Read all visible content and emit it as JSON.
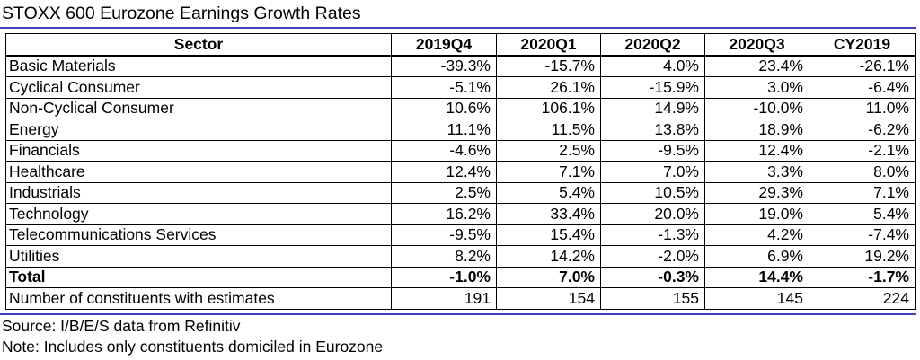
{
  "title": "STOXX 600 Eurozone Earnings Growth Rates",
  "table": {
    "headers": [
      "Sector",
      "2019Q4",
      "2020Q1",
      "2020Q2",
      "2020Q3",
      "CY2019"
    ],
    "rows": [
      {
        "name": "Basic Materials",
        "values": [
          "-39.3%",
          "-15.7%",
          "4.0%",
          "23.4%",
          "-26.1%"
        ]
      },
      {
        "name": "Cyclical Consumer",
        "values": [
          "-5.1%",
          "26.1%",
          "-15.9%",
          "3.0%",
          "-6.4%"
        ]
      },
      {
        "name": "Non-Cyclical Consumer",
        "values": [
          "10.6%",
          "106.1%",
          "14.9%",
          "-10.0%",
          "11.0%"
        ]
      },
      {
        "name": "Energy",
        "values": [
          "11.1%",
          "11.5%",
          "13.8%",
          "18.9%",
          "-6.2%"
        ]
      },
      {
        "name": "Financials",
        "values": [
          "-4.6%",
          "2.5%",
          "-9.5%",
          "12.4%",
          "-2.1%"
        ]
      },
      {
        "name": "Healthcare",
        "values": [
          "12.4%",
          "7.1%",
          "7.0%",
          "3.3%",
          "8.0%"
        ]
      },
      {
        "name": "Industrials",
        "values": [
          "2.5%",
          "5.4%",
          "10.5%",
          "29.3%",
          "7.1%"
        ]
      },
      {
        "name": "Technology",
        "values": [
          "16.2%",
          "33.4%",
          "20.0%",
          "19.0%",
          "5.4%"
        ]
      },
      {
        "name": "Telecommunications Services",
        "values": [
          "-9.5%",
          "15.4%",
          "-1.3%",
          "4.2%",
          "-7.4%"
        ]
      },
      {
        "name": "Utilities",
        "values": [
          "8.2%",
          "14.2%",
          "-2.0%",
          "6.9%",
          "19.2%"
        ]
      },
      {
        "name": "Total",
        "values": [
          "-1.0%",
          "7.0%",
          "-0.3%",
          "14.4%",
          "-1.7%"
        ],
        "bold": true
      },
      {
        "name": "Number of constituents with estimates",
        "values": [
          "191",
          "154",
          "155",
          "145",
          "224"
        ]
      }
    ]
  },
  "source": "Source: I/B/E/S data from Refinitiv",
  "note": "Note: Includes only constituents domiciled in Eurozone"
}
